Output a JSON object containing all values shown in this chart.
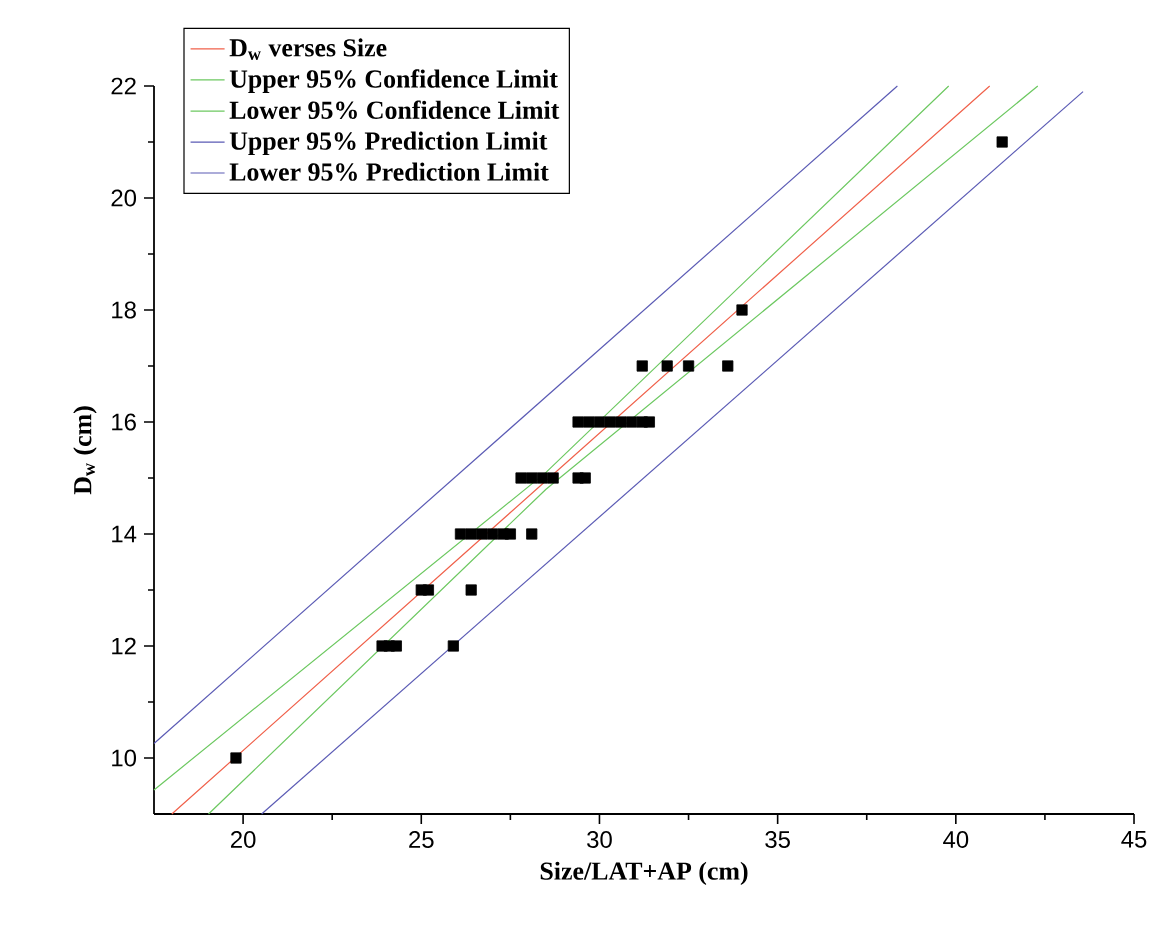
{
  "chart_data": {
    "type": "line",
    "xlabel": "Size/LAT+AP (cm)",
    "ylabel": "D$_{w}$ (cm)",
    "xlim": [
      17.5,
      45
    ],
    "ylim": [
      9,
      22
    ],
    "xticks": [
      20,
      25,
      30,
      35,
      40,
      45
    ],
    "yticks": [
      10,
      12,
      14,
      16,
      18,
      20,
      22
    ],
    "legend": "top left",
    "series": [
      {
        "name": "D$_{w}$ verses Size",
        "color": "#f0604a",
        "x": [
          18.0,
          28.5,
          40.95
        ],
        "values": [
          9,
          14.95,
          22
        ]
      },
      {
        "name": "Upper 95% Confidence Limit",
        "color": "#6cc860",
        "x": [
          17.5,
          28.5,
          39.8
        ],
        "values": [
          9.43,
          15.1,
          22
        ]
      },
      {
        "name": "Lower 95% Confidence Limit",
        "color": "#6cc860",
        "x": [
          19.03,
          28.5,
          42.3
        ],
        "values": [
          9,
          14.8,
          22
        ]
      },
      {
        "name": "Upper 95% Prediction Limit",
        "color": "#5a5ab4",
        "x": [
          17.5,
          38.36
        ],
        "values": [
          10.26,
          22
        ]
      },
      {
        "name": "Lower 95% Prediction Limit",
        "color": "#5a5ab4",
        "x": [
          20.52,
          43.57
        ],
        "values": [
          9,
          21.9
        ]
      },
      {
        "type": "scatter",
        "marker": "square",
        "color": "#000000",
        "x": [
          19.8,
          23.9,
          24.1,
          24.3,
          25.9,
          25.0,
          25.2,
          26.4,
          26.1,
          26.4,
          26.7,
          27.0,
          27.3,
          27.5,
          28.1,
          27.8,
          28.1,
          28.4,
          28.7,
          29.4,
          29.6,
          29.4,
          29.7,
          30.0,
          30.3,
          30.6,
          30.9,
          31.2,
          31.4,
          31.2,
          31.9,
          32.5,
          33.6,
          34.0,
          41.3
        ],
        "values": [
          10,
          12,
          12,
          12,
          12,
          13,
          13,
          13,
          14,
          14,
          14,
          14,
          14,
          14,
          14,
          15,
          15,
          15,
          15,
          15,
          15,
          16,
          16,
          16,
          16,
          16,
          16,
          16,
          16,
          17,
          17,
          17,
          17,
          18,
          21
        ]
      }
    ]
  }
}
